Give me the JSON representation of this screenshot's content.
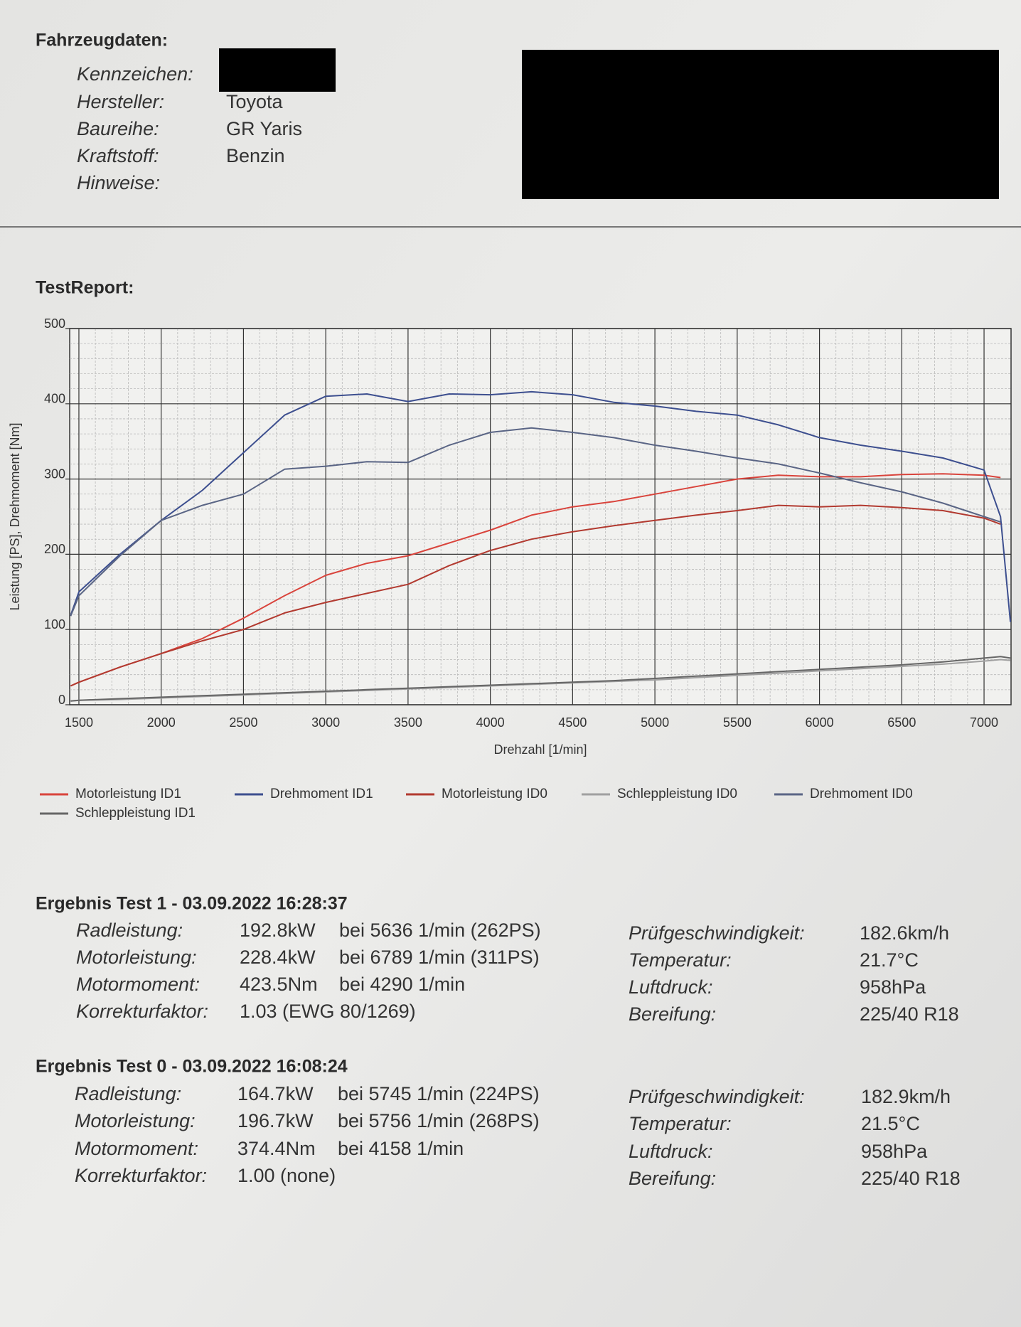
{
  "vehicle": {
    "title": "Fahrzeugdaten:",
    "fields": [
      {
        "label": "Kennzeichen:"
      },
      {
        "label": "Hersteller:",
        "value": "Toyota"
      },
      {
        "label": "Baureihe:",
        "value": "GR Yaris"
      },
      {
        "label": "Kraftstoff:",
        "value": "Benzin"
      },
      {
        "label": "Hinweise:"
      }
    ]
  },
  "report_title": "TestReport:",
  "chart_data": {
    "type": "line",
    "xlabel": "Drehzahl [1/min]",
    "ylabel": "Leistung [PS], Drehmoment [Nm]",
    "x": [
      1450,
      1500,
      1750,
      2000,
      2250,
      2500,
      2750,
      3000,
      3250,
      3500,
      3750,
      4000,
      4250,
      4500,
      4750,
      5000,
      5250,
      5500,
      5750,
      6000,
      6250,
      6500,
      6750,
      7000,
      7100,
      7160
    ],
    "xlim": [
      1444,
      7164
    ],
    "xticks": [
      1500,
      2000,
      2500,
      3000,
      3500,
      4000,
      4500,
      5000,
      5500,
      6000,
      6500,
      7000
    ],
    "ylim": [
      0,
      500
    ],
    "yticks": [
      0,
      100,
      200,
      300,
      400,
      500
    ],
    "grid": true,
    "legend": "bottom",
    "series": [
      {
        "name": "Motorleistung ID1",
        "color": "#d9443c",
        "values": [
          25,
          30,
          50,
          68,
          88,
          115,
          145,
          172,
          188,
          198,
          215,
          232,
          252,
          263,
          270,
          280,
          290,
          300,
          305,
          303,
          303,
          306,
          307,
          305,
          302,
          null
        ]
      },
      {
        "name": "Drehmoment ID1",
        "color": "#3d4f8f",
        "values": [
          119,
          150,
          200,
          245,
          285,
          335,
          385,
          410,
          413,
          403,
          413,
          412,
          416,
          412,
          402,
          397,
          390,
          385,
          372,
          355,
          345,
          337,
          328,
          312,
          250,
          110
        ]
      },
      {
        "name": "Motorleistung ID0",
        "color": "#b23a30",
        "values": [
          25,
          30,
          50,
          68,
          85,
          100,
          122,
          136,
          148,
          160,
          185,
          205,
          220,
          230,
          238,
          245,
          252,
          258,
          265,
          263,
          265,
          262,
          258,
          248,
          240,
          null
        ]
      },
      {
        "name": "Schleppleistung ID0",
        "color": "#a0a0a0",
        "values": [
          5,
          6,
          7,
          9,
          11,
          13,
          15,
          17,
          19,
          21,
          23,
          25,
          27,
          29,
          31,
          33,
          36,
          39,
          42,
          45,
          48,
          51,
          54,
          58,
          60,
          59
        ]
      },
      {
        "name": "Drehmoment ID0",
        "color": "#5a6585",
        "values": [
          118,
          145,
          198,
          245,
          265,
          280,
          313,
          317,
          323,
          322,
          345,
          362,
          368,
          362,
          355,
          345,
          337,
          328,
          320,
          308,
          295,
          283,
          268,
          250,
          243,
          null
        ]
      },
      {
        "name": "Schleppleistung ID1",
        "color": "#666666",
        "values": [
          5,
          6,
          8,
          10,
          12,
          14,
          16,
          18,
          20,
          22,
          24,
          26,
          28,
          30,
          32,
          35,
          38,
          41,
          44,
          47,
          50,
          53,
          57,
          62,
          64,
          62
        ]
      }
    ]
  },
  "results": [
    {
      "title": "Ergebnis Test 1 - 03.09.2022 16:28:37",
      "left": [
        {
          "label": "Radleistung:",
          "value": "192.8kW",
          "detail": "bei 5636 1/min (262PS)"
        },
        {
          "label": "Motorleistung:",
          "value": "228.4kW",
          "detail": "bei 6789 1/min (311PS)"
        },
        {
          "label": "Motormoment:",
          "value": "423.5Nm",
          "detail": "bei 4290 1/min"
        },
        {
          "label": "Korrekturfaktor:",
          "value": "1.03 (EWG 80/1269)"
        }
      ],
      "right": [
        {
          "label": "Prüfgeschwindigkeit:",
          "value": "182.6km/h"
        },
        {
          "label": "Temperatur:",
          "value": "21.7°C"
        },
        {
          "label": "Luftdruck:",
          "value": "958hPa"
        },
        {
          "label": "Bereifung:",
          "value": "225/40 R18"
        }
      ]
    },
    {
      "title": "Ergebnis Test 0 - 03.09.2022 16:08:24",
      "left": [
        {
          "label": "Radleistung:",
          "value": "164.7kW",
          "detail": "bei 5745 1/min (224PS)"
        },
        {
          "label": "Motorleistung:",
          "value": "196.7kW",
          "detail": "bei 5756 1/min (268PS)"
        },
        {
          "label": "Motormoment:",
          "value": "374.4Nm",
          "detail": "bei 4158 1/min"
        },
        {
          "label": "Korrekturfaktor:",
          "value": "1.00 (none)"
        }
      ],
      "right": [
        {
          "label": "Prüfgeschwindigkeit:",
          "value": "182.9km/h"
        },
        {
          "label": "Temperatur:",
          "value": "21.5°C"
        },
        {
          "label": "Luftdruck:",
          "value": "958hPa"
        },
        {
          "label": "Bereifung:",
          "value": "225/40 R18"
        }
      ]
    }
  ]
}
